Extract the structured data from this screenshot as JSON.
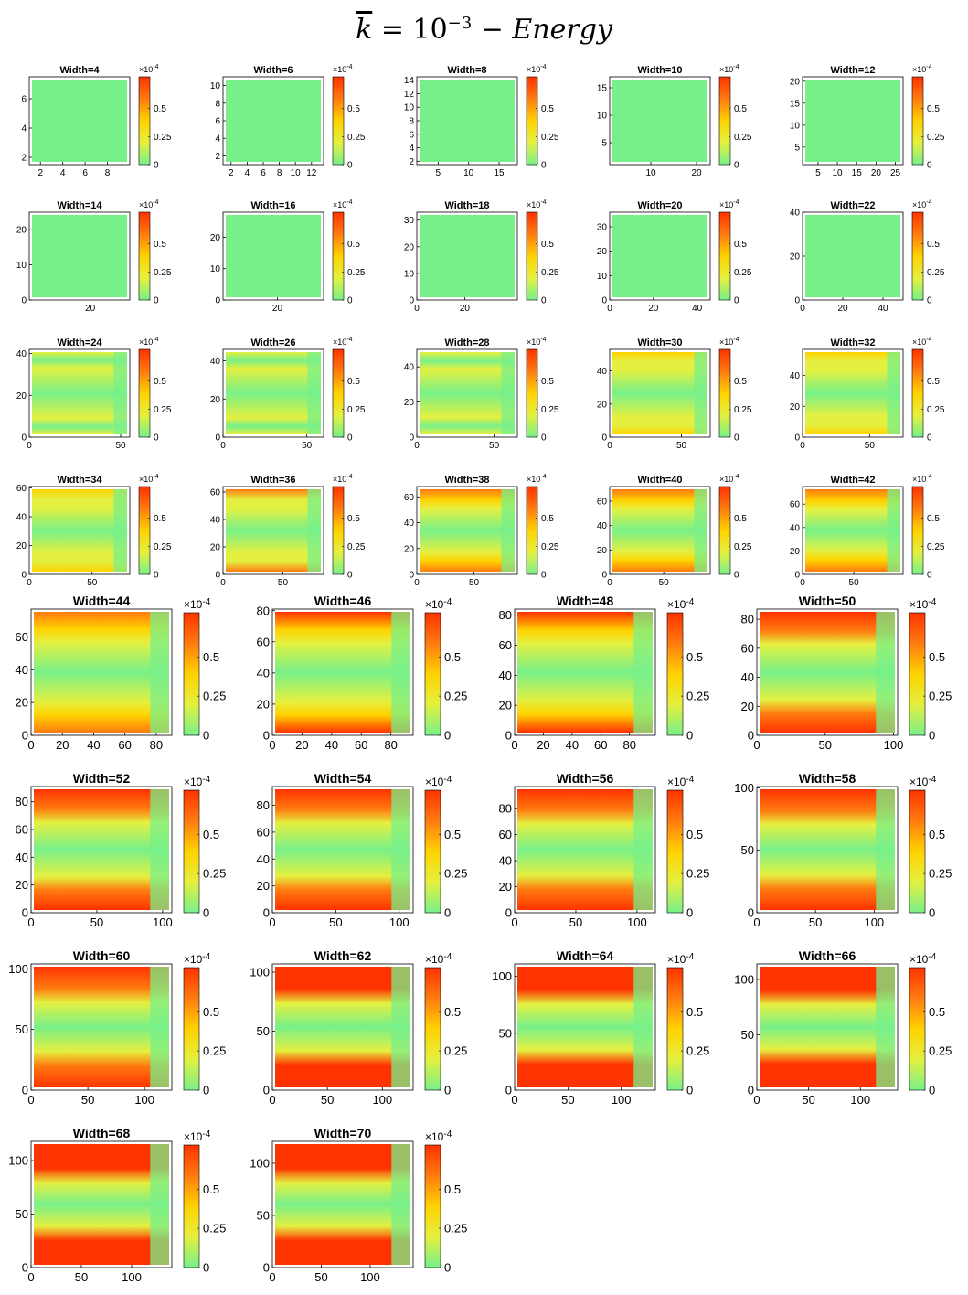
{
  "title": {
    "k_symbol": "k",
    "equals": " = 10",
    "exponent": "−3",
    "suffix": " − Energy"
  },
  "colorbar": {
    "multiplier_base": "×10",
    "multiplier_exp": "-4",
    "ticks": [
      "0.5",
      "0.25",
      "0"
    ],
    "colors": [
      "#78f089",
      "#e4f040",
      "#ffd200",
      "#ff7b10",
      "#ff3300"
    ]
  },
  "chart_data": [
    {
      "type": "heatmap",
      "title": "Width=4",
      "xticks": [
        "2",
        "4",
        "6",
        "8"
      ],
      "yticks": [
        "2",
        "4",
        "6"
      ],
      "xlim": [
        1,
        10
      ],
      "ylim": [
        1.5,
        7.5
      ]
    },
    {
      "type": "heatmap",
      "title": "Width=6",
      "xticks": [
        "2",
        "4",
        "6",
        "8",
        "10",
        "12"
      ],
      "yticks": [
        "2",
        "4",
        "6",
        "8",
        "10"
      ],
      "xlim": [
        1,
        13.5
      ],
      "ylim": [
        1,
        11
      ]
    },
    {
      "type": "heatmap",
      "title": "Width=8",
      "xticks": [
        "5",
        "10",
        "15"
      ],
      "yticks": [
        "2",
        "4",
        "6",
        "8",
        "10",
        "12",
        "14"
      ],
      "xlim": [
        1.5,
        18
      ],
      "ylim": [
        1.5,
        14.5
      ]
    },
    {
      "type": "heatmap",
      "title": "Width=10",
      "xticks": [
        "10",
        "20"
      ],
      "yticks": [
        "5",
        "10",
        "15"
      ],
      "xlim": [
        1,
        23
      ],
      "ylim": [
        1,
        17
      ]
    },
    {
      "type": "heatmap",
      "title": "Width=12",
      "xticks": [
        "5",
        "10",
        "15",
        "20",
        "25"
      ],
      "yticks": [
        "5",
        "10",
        "15",
        "20"
      ],
      "xlim": [
        1,
        27
      ],
      "ylim": [
        1,
        21
      ]
    },
    {
      "type": "heatmap",
      "title": "Width=14",
      "xticks": [
        "20"
      ],
      "yticks": [
        "0",
        "10",
        "20"
      ],
      "xlim": [
        0,
        33
      ],
      "ylim": [
        0,
        25
      ]
    },
    {
      "type": "heatmap",
      "title": "Width=16",
      "xticks": [
        "20"
      ],
      "yticks": [
        "0",
        "10",
        "20"
      ],
      "xlim": [
        0,
        37
      ],
      "ylim": [
        0,
        28
      ]
    },
    {
      "type": "heatmap",
      "title": "Width=18",
      "xticks": [
        "0",
        "20"
      ],
      "yticks": [
        "0",
        "10",
        "20",
        "30"
      ],
      "xlim": [
        0,
        42
      ],
      "ylim": [
        0,
        33
      ]
    },
    {
      "type": "heatmap",
      "title": "Width=20",
      "xticks": [
        "0",
        "20",
        "40"
      ],
      "yticks": [
        "0",
        "10",
        "20",
        "30"
      ],
      "xlim": [
        0,
        46
      ],
      "ylim": [
        0,
        36
      ]
    },
    {
      "type": "heatmap",
      "title": "Width=22",
      "xticks": [
        "0",
        "20",
        "40"
      ],
      "yticks": [
        "0",
        "20",
        "40"
      ],
      "xlim": [
        0,
        50
      ],
      "ylim": [
        0,
        40
      ]
    },
    {
      "type": "heatmap",
      "title": "Width=24",
      "xticks": [
        "0",
        "50"
      ],
      "yticks": [
        "0",
        "20",
        "40"
      ],
      "xlim": [
        0,
        55
      ],
      "ylim": [
        0,
        42
      ]
    },
    {
      "type": "heatmap",
      "title": "Width=26",
      "xticks": [
        "0",
        "50"
      ],
      "yticks": [
        "0",
        "20",
        "40"
      ],
      "xlim": [
        0,
        60
      ],
      "ylim": [
        0,
        46
      ]
    },
    {
      "type": "heatmap",
      "title": "Width=28",
      "xticks": [
        "0",
        "50"
      ],
      "yticks": [
        "0",
        "20",
        "40"
      ],
      "xlim": [
        0,
        65
      ],
      "ylim": [
        0,
        50
      ]
    },
    {
      "type": "heatmap",
      "title": "Width=30",
      "xticks": [
        "0",
        "50"
      ],
      "yticks": [
        "0",
        "20",
        "40"
      ],
      "xlim": [
        0,
        70
      ],
      "ylim": [
        0,
        53
      ]
    },
    {
      "type": "heatmap",
      "title": "Width=32",
      "xticks": [
        "0",
        "50"
      ],
      "yticks": [
        "0",
        "20",
        "40"
      ],
      "xlim": [
        0,
        75
      ],
      "ylim": [
        0,
        57
      ]
    },
    {
      "type": "heatmap",
      "title": "Width=34",
      "xticks": [
        "0",
        "50"
      ],
      "yticks": [
        "0",
        "20",
        "40",
        "60"
      ],
      "xlim": [
        0,
        80
      ],
      "ylim": [
        0,
        61
      ]
    },
    {
      "type": "heatmap",
      "title": "Width=36",
      "xticks": [
        "0",
        "50"
      ],
      "yticks": [
        "0",
        "20",
        "40",
        "60"
      ],
      "xlim": [
        0,
        84
      ],
      "ylim": [
        0,
        64
      ]
    },
    {
      "type": "heatmap",
      "title": "Width=38",
      "xticks": [
        "0",
        "50"
      ],
      "yticks": [
        "0",
        "20",
        "40",
        "60"
      ],
      "xlim": [
        0,
        88
      ],
      "ylim": [
        0,
        68
      ]
    },
    {
      "type": "heatmap",
      "title": "Width=40",
      "xticks": [
        "0",
        "50"
      ],
      "yticks": [
        "0",
        "20",
        "40",
        "60"
      ],
      "xlim": [
        0,
        93
      ],
      "ylim": [
        0,
        72
      ]
    },
    {
      "type": "heatmap",
      "title": "Width=42",
      "xticks": [
        "0",
        "50"
      ],
      "yticks": [
        "0",
        "20",
        "40",
        "60"
      ],
      "xlim": [
        0,
        98
      ],
      "ylim": [
        0,
        75
      ]
    },
    {
      "type": "heatmap",
      "title": "Width=44",
      "xticks": [
        "0",
        "20",
        "40",
        "60",
        "80"
      ],
      "yticks": [
        "0",
        "20",
        "40",
        "60"
      ],
      "xlim": [
        0,
        90
      ],
      "ylim": [
        0,
        77
      ]
    },
    {
      "type": "heatmap",
      "title": "Width=46",
      "xticks": [
        "0",
        "20",
        "40",
        "60",
        "80"
      ],
      "yticks": [
        "0",
        "20",
        "40",
        "60",
        "80"
      ],
      "xlim": [
        0,
        95
      ],
      "ylim": [
        0,
        81
      ]
    },
    {
      "type": "heatmap",
      "title": "Width=48",
      "xticks": [
        "0",
        "20",
        "40",
        "60",
        "80"
      ],
      "yticks": [
        "0",
        "20",
        "40",
        "60",
        "80"
      ],
      "xlim": [
        0,
        98
      ],
      "ylim": [
        0,
        84
      ]
    },
    {
      "type": "heatmap",
      "title": "Width=50",
      "xticks": [
        "0",
        "50",
        "100"
      ],
      "yticks": [
        "0",
        "20",
        "40",
        "60",
        "80"
      ],
      "xlim": [
        0,
        103
      ],
      "ylim": [
        0,
        87
      ]
    },
    {
      "type": "heatmap",
      "title": "Width=52",
      "xticks": [
        "0",
        "50",
        "100"
      ],
      "yticks": [
        "0",
        "20",
        "40",
        "60",
        "80"
      ],
      "xlim": [
        0,
        107
      ],
      "ylim": [
        0,
        91
      ]
    },
    {
      "type": "heatmap",
      "title": "Width=54",
      "xticks": [
        "0",
        "50",
        "100"
      ],
      "yticks": [
        "0",
        "20",
        "40",
        "60",
        "80"
      ],
      "xlim": [
        0,
        111
      ],
      "ylim": [
        0,
        94
      ]
    },
    {
      "type": "heatmap",
      "title": "Width=56",
      "xticks": [
        "0",
        "50",
        "100"
      ],
      "yticks": [
        "0",
        "20",
        "40",
        "60",
        "80"
      ],
      "xlim": [
        0,
        115
      ],
      "ylim": [
        0,
        97
      ]
    },
    {
      "type": "heatmap",
      "title": "Width=58",
      "xticks": [
        "0",
        "50",
        "100"
      ],
      "yticks": [
        "0",
        "50",
        "100"
      ],
      "xlim": [
        0,
        120
      ],
      "ylim": [
        0,
        101
      ]
    },
    {
      "type": "heatmap",
      "title": "Width=60",
      "xticks": [
        "0",
        "50",
        "100"
      ],
      "yticks": [
        "0",
        "50",
        "100"
      ],
      "xlim": [
        0,
        124
      ],
      "ylim": [
        0,
        104
      ]
    },
    {
      "type": "heatmap",
      "title": "Width=62",
      "xticks": [
        "0",
        "50",
        "100"
      ],
      "yticks": [
        "0",
        "50",
        "100"
      ],
      "xlim": [
        0,
        128
      ],
      "ylim": [
        0,
        107
      ]
    },
    {
      "type": "heatmap",
      "title": "Width=64",
      "xticks": [
        "0",
        "50",
        "100"
      ],
      "yticks": [
        "0",
        "50",
        "100"
      ],
      "xlim": [
        0,
        132
      ],
      "ylim": [
        0,
        111
      ]
    },
    {
      "type": "heatmap",
      "title": "Width=66",
      "xticks": [
        "0",
        "50",
        "100"
      ],
      "yticks": [
        "0",
        "50",
        "100"
      ],
      "xlim": [
        0,
        136
      ],
      "ylim": [
        0,
        114
      ]
    },
    {
      "type": "heatmap",
      "title": "Width=68",
      "xticks": [
        "0",
        "50",
        "100"
      ],
      "yticks": [
        "0",
        "50",
        "100"
      ],
      "xlim": [
        0,
        140
      ],
      "ylim": [
        0,
        118
      ]
    },
    {
      "type": "heatmap",
      "title": "Width=70",
      "xticks": [
        "0",
        "50",
        "100"
      ],
      "yticks": [
        "0",
        "50",
        "100"
      ],
      "xlim": [
        0,
        144
      ],
      "ylim": [
        0,
        121
      ]
    }
  ]
}
